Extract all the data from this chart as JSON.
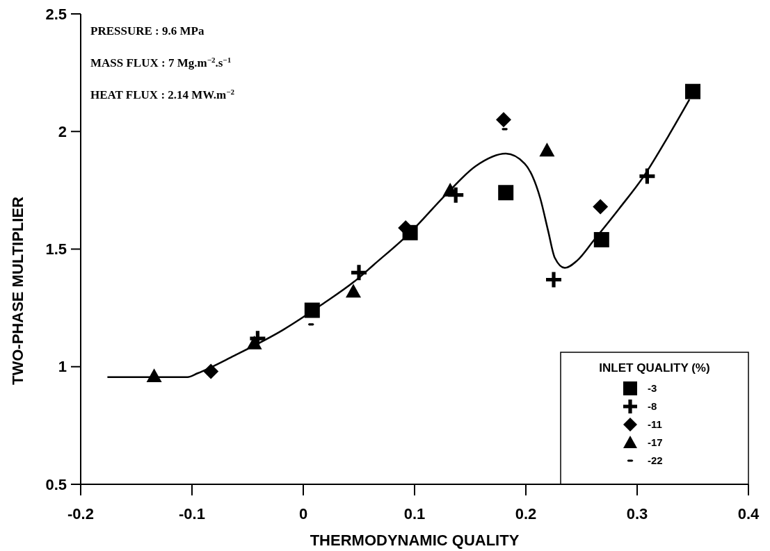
{
  "chart_data": {
    "type": "scatter",
    "xlabel": "THERMODYNAMIC QUALITY",
    "ylabel": "TWO-PHASE MULTIPLIER",
    "legend_title": "INLET QUALITY (%)",
    "annotations": [
      "PRESSURE : 9.6 MPa",
      "MASS FLUX : 7 Mg.m$^{−2}$.s$^{−1}$",
      "HEAT FLUX : 2.14 MW.m$^{−2}$"
    ],
    "xlim": [
      -0.2,
      0.4
    ],
    "xticks": [
      -0.2,
      -0.1,
      0,
      0.1,
      0.2,
      0.3,
      0.4
    ],
    "ylim": [
      0.5,
      2.5
    ],
    "yticks": [
      0.5,
      1,
      1.5,
      2,
      2.5
    ],
    "grid": false,
    "legend": "bottom right",
    "series": [
      {
        "name": "-3",
        "color": "#000000",
        "marker": "square",
        "x": [
          0.008,
          0.096,
          0.182,
          0.268,
          0.35
        ],
        "values": [
          1.24,
          1.57,
          1.74,
          1.54,
          2.17
        ]
      },
      {
        "name": "-8",
        "color": "#000000",
        "marker": "cross",
        "x": [
          -0.041,
          0.05,
          0.137,
          0.225,
          0.309
        ],
        "values": [
          1.12,
          1.4,
          1.73,
          1.37,
          1.81
        ]
      },
      {
        "name": "-11",
        "color": "#000000",
        "marker": "diamond",
        "x": [
          -0.083,
          0.092,
          0.18,
          0.267
        ],
        "values": [
          0.98,
          1.59,
          2.05,
          1.68
        ]
      },
      {
        "name": "-17",
        "color": "#000000",
        "marker": "triangle",
        "x": [
          -0.134,
          -0.044,
          0.045,
          0.132,
          0.219
        ],
        "values": [
          0.96,
          1.1,
          1.32,
          1.75,
          1.92
        ]
      },
      {
        "name": "-22",
        "color": "#000000",
        "x": [
          0.007,
          0.181
        ],
        "values": [
          1.18,
          2.01
        ]
      },
      {
        "type": "line",
        "color": "#000000",
        "marker": "none",
        "line_style": "solid",
        "x": [
          -0.176,
          -0.104,
          -0.095,
          -0.062,
          -0.018,
          0.016,
          0.049,
          0.0625,
          0.096,
          0.129,
          0.155,
          0.182,
          0.199,
          0.213,
          0.22,
          0.226,
          0.235,
          0.246,
          0.261,
          0.284,
          0.306,
          0.328,
          0.347
        ],
        "values": [
          0.956,
          0.956,
          0.972,
          1.047,
          1.157,
          1.262,
          1.374,
          1.43,
          1.57,
          1.736,
          1.853,
          1.906,
          1.863,
          1.715,
          1.578,
          1.463,
          1.42,
          1.451,
          1.537,
          1.673,
          1.81,
          1.98,
          2.136
        ]
      }
    ]
  }
}
